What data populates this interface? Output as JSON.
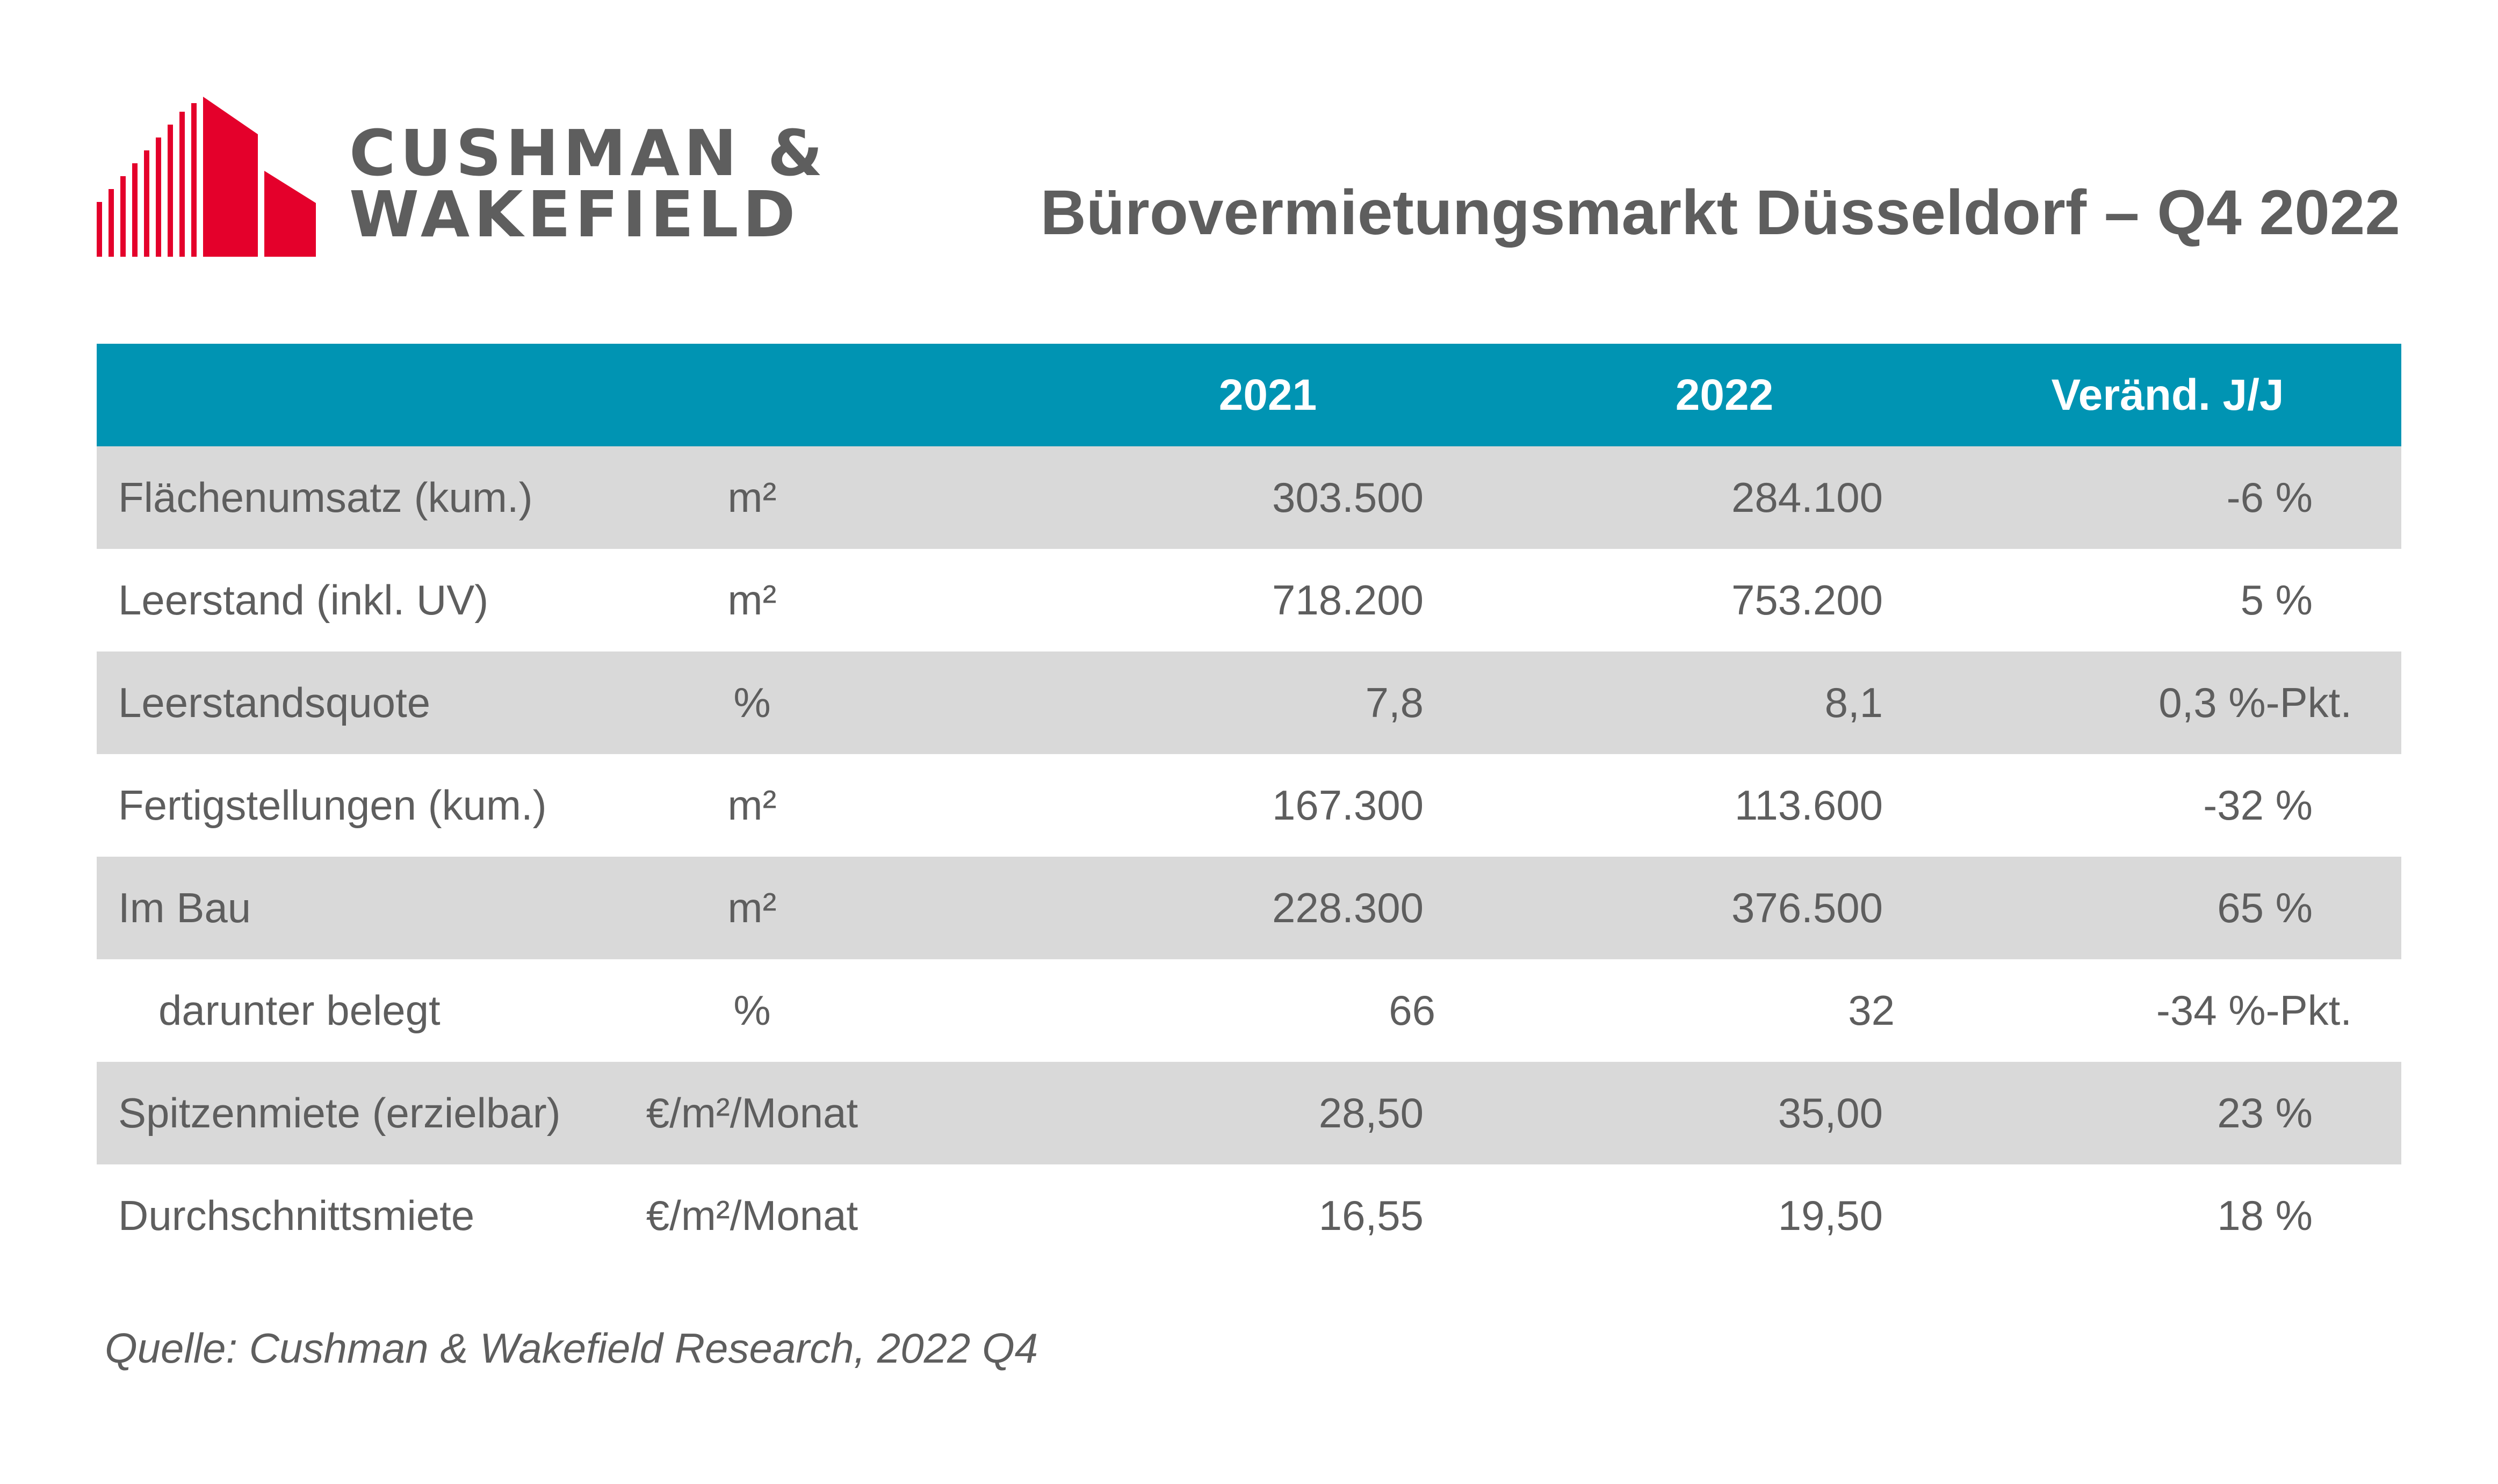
{
  "brand": {
    "line1": "CUSHMAN &",
    "line2": "WAKEFIELD",
    "colors": {
      "red": "#e4002b",
      "gray": "#5e5e5e"
    }
  },
  "title": "Bürovermietungsmarkt Düsseldorf – Q4 2022",
  "table": {
    "header": {
      "label": "",
      "unit": "",
      "y2021": "2021",
      "y2022": "2022",
      "change": "Veränd. J/J"
    },
    "header_color": "#0094b3",
    "row_shade_color": "#d9d9d9",
    "rows": [
      {
        "label": "Flächenumsatz (kum.)",
        "unit": "m²",
        "y2021": "303.500",
        "y2022": "284.100",
        "change": "-6 %"
      },
      {
        "label": "Leerstand (inkl. UV)",
        "unit": "m²",
        "y2021": "718.200",
        "y2022": "753.200",
        "change": "5 %"
      },
      {
        "label": "Leerstandsquote",
        "unit": "%",
        "y2021": "7,8",
        "y2022": "8,1",
        "change": "0,3 %-Pkt."
      },
      {
        "label": "Fertigstellungen (kum.)",
        "unit": "m²",
        "y2021": "167.300",
        "y2022": "113.600",
        "change": "-32 %"
      },
      {
        "label": "Im Bau",
        "unit": "m²",
        "y2021": "228.300",
        "y2022": "376.500",
        "change": "65 %"
      },
      {
        "label": "darunter belegt",
        "unit": "%",
        "y2021": "66",
        "y2022": "32",
        "change": "-34 %-Pkt."
      },
      {
        "label": "Spitzenmiete (erzielbar)",
        "unit": "€/m²/Monat",
        "y2021": "28,50",
        "y2022": "35,00",
        "change": "23 %"
      },
      {
        "label": "Durchschnittsmiete",
        "unit": "€/m²/Monat",
        "y2021": "16,55",
        "y2022": "19,50",
        "change": "18 %"
      }
    ]
  },
  "source": "Quelle: Cushman & Wakefield Research, 2022 Q4"
}
